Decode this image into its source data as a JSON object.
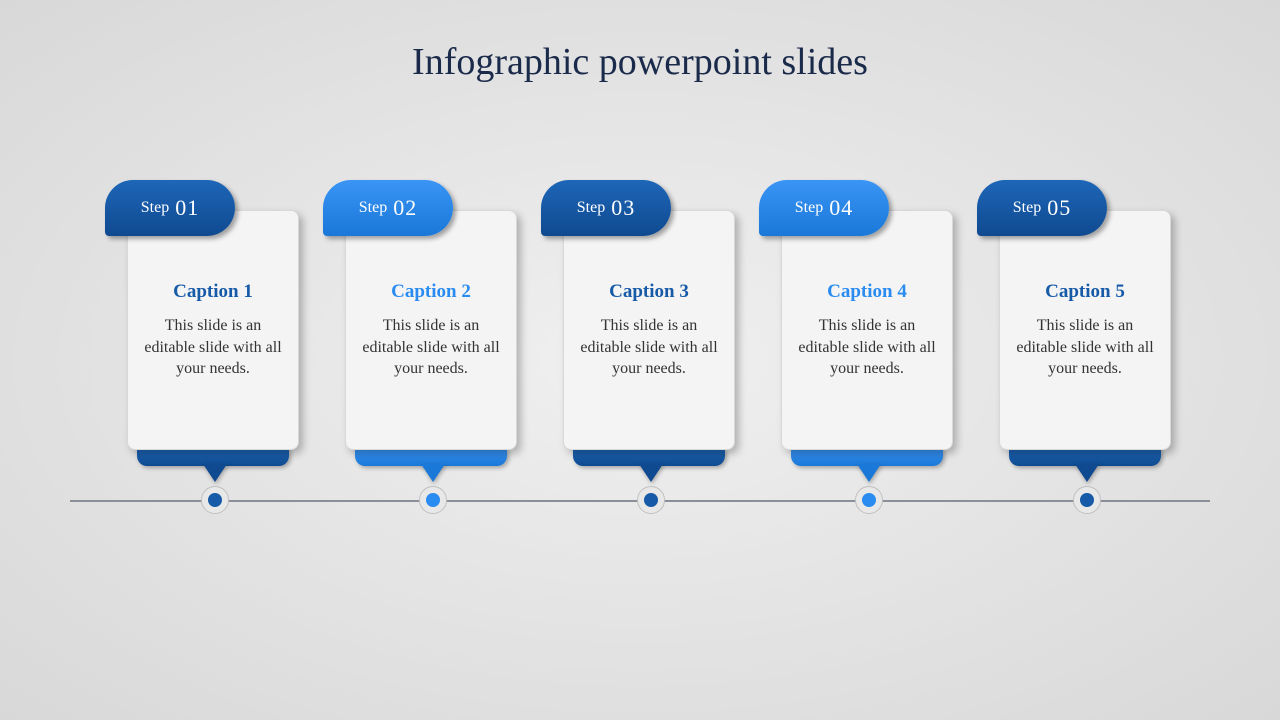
{
  "title": "Infographic powerpoint slides",
  "title_color": "#1a2a4a",
  "background_gradient": {
    "inner": "#f0f0f0",
    "outer": "#d8d8d8"
  },
  "timeline_color": "#8a9098",
  "card_bg": "#f4f4f4",
  "card_border": "#d8d8d8",
  "dot_outer_bg": "#e8e8e8",
  "colors": {
    "dark_blue": "#175aa8",
    "dark_blue_grad_top": "#1e66b8",
    "dark_blue_grad_bot": "#0f4a90",
    "light_blue": "#2a8cf0",
    "light_blue_grad_top": "#3a95f5",
    "light_blue_grad_bot": "#1a78d8"
  },
  "steps": [
    {
      "step_label": "Step",
      "num": "01",
      "caption": "Caption 1",
      "body": "This slide is an editable slide with all your needs.",
      "variant": "dark"
    },
    {
      "step_label": "Step",
      "num": "02",
      "caption": "Caption 2",
      "body": "This slide is an editable slide with all your needs.",
      "variant": "light"
    },
    {
      "step_label": "Step",
      "num": "03",
      "caption": "Caption 3",
      "body": "This slide is an editable slide with all your needs.",
      "variant": "dark"
    },
    {
      "step_label": "Step",
      "num": "04",
      "caption": "Caption 4",
      "body": "This slide is an editable slide with all your needs.",
      "variant": "light"
    },
    {
      "step_label": "Step",
      "num": "05",
      "caption": "Caption 5",
      "body": "This slide is an editable slide with all your needs.",
      "variant": "dark"
    }
  ]
}
